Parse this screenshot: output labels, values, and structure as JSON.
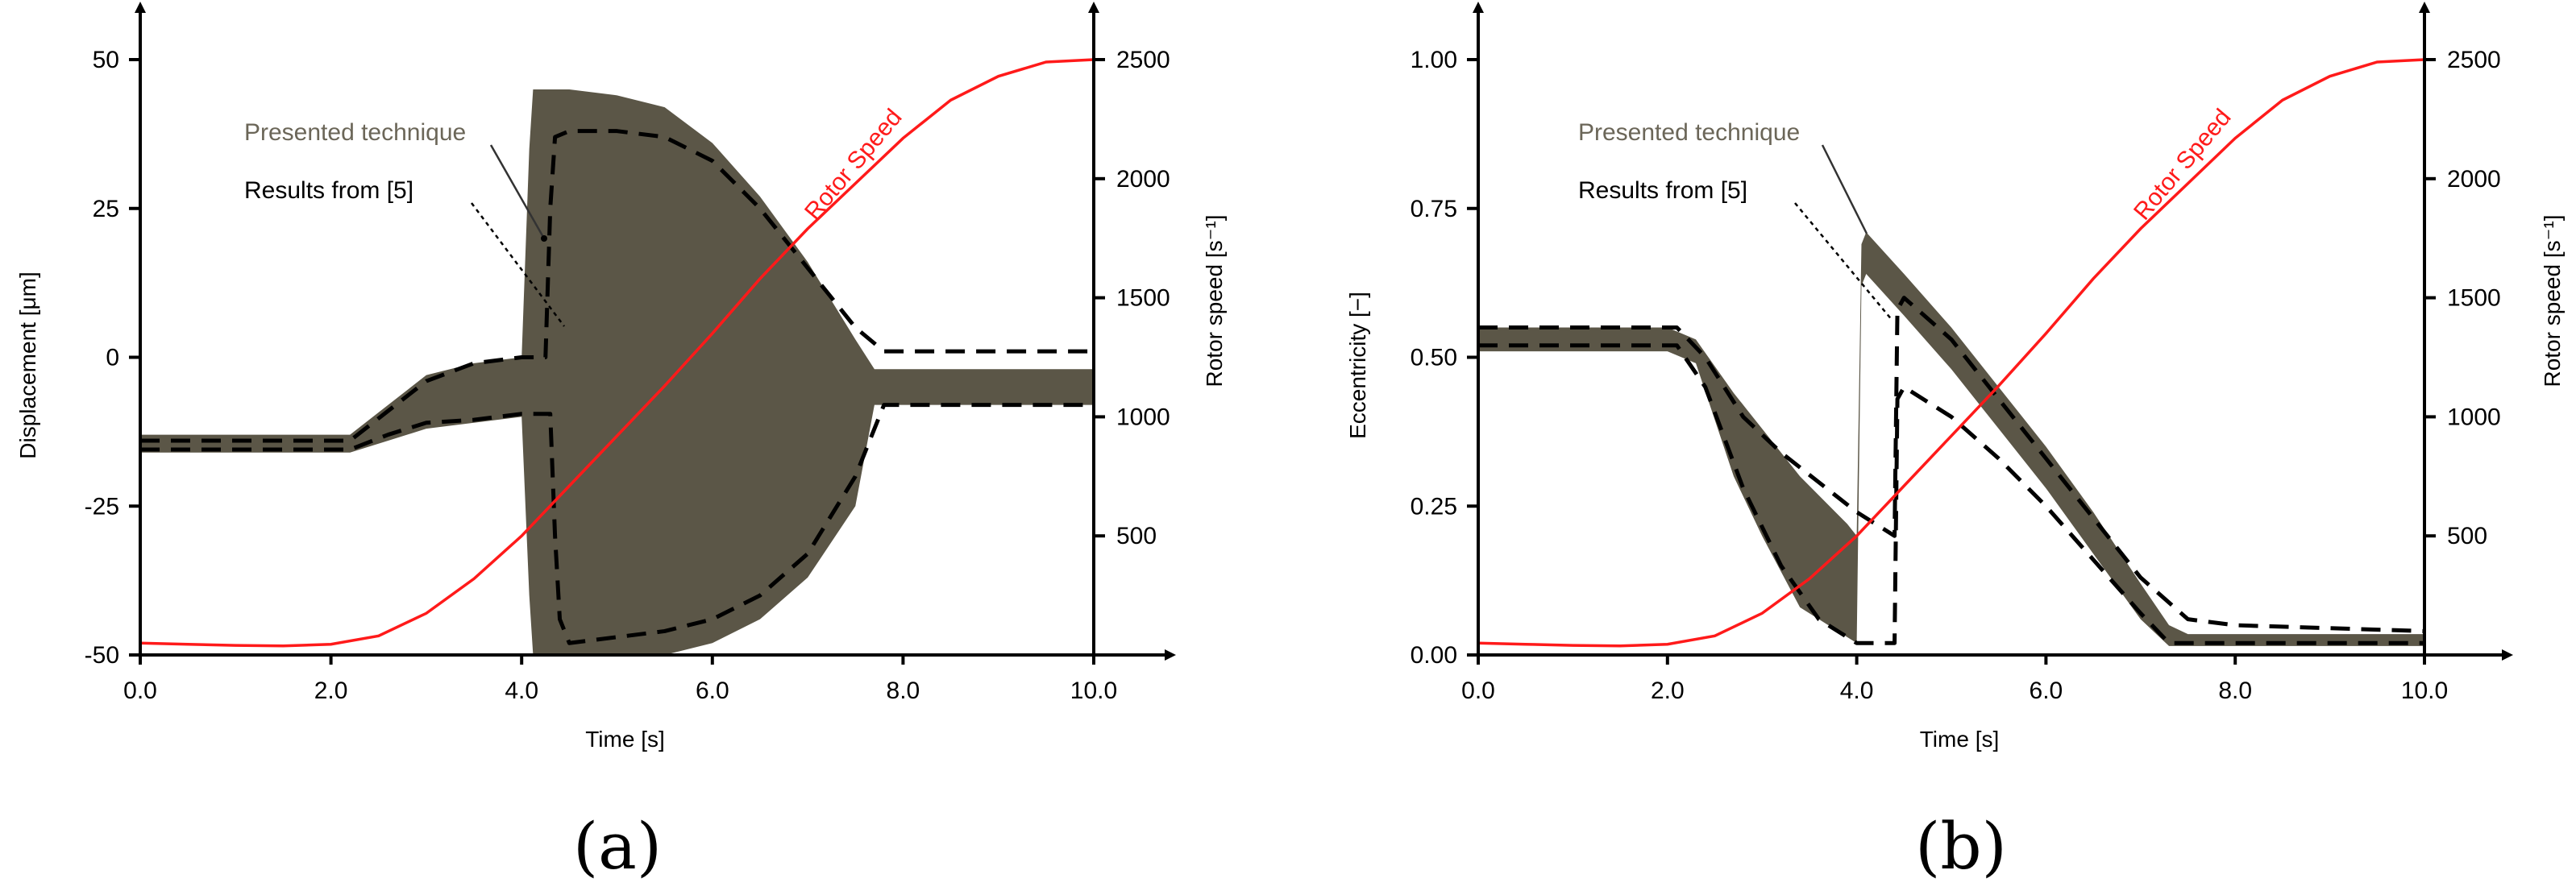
{
  "chart_data": [
    {
      "type": "line",
      "panel_label": "(a)",
      "xlabel": "Time [s]",
      "ylabel": "Displacement [μm]",
      "y2label": "Rotor speed [s⁻¹]",
      "xlim": [
        0,
        10
      ],
      "ylim": [
        -50,
        60
      ],
      "y2lim": [
        0,
        2500
      ],
      "xticks": [
        "0.0",
        "2.0",
        "4.0",
        "6.0",
        "8.0",
        "10.0"
      ],
      "xtick_values": [
        0,
        2,
        4,
        6,
        8,
        10
      ],
      "yticks": [
        "50",
        "25",
        "0",
        "-25",
        "-50"
      ],
      "ytick_values": [
        50,
        25,
        0,
        -25,
        -50
      ],
      "y2ticks": [
        "2500",
        "2000",
        "1500",
        "1000",
        "500"
      ],
      "y2tick_values": [
        2500,
        2000,
        1500,
        1000,
        500
      ],
      "annotations": {
        "presented": "Presented technique",
        "results": "Results from [5]",
        "rotor": "Rotor Speed"
      },
      "series": [
        {
          "kind": "band",
          "label_ref": "presented",
          "color": "#5b5647",
          "x": [
            0,
            2.2,
            2.6,
            3.0,
            3.5,
            4.0,
            4.08,
            4.12,
            4.5,
            5.0,
            5.5,
            6.0,
            6.5,
            7.0,
            7.5,
            7.7,
            8.0,
            9.0,
            10.0
          ],
          "upper": [
            -13,
            -13,
            -8,
            -3,
            -1,
            0,
            35,
            45,
            45,
            44,
            42,
            36,
            27,
            16,
            3,
            -2,
            -2,
            -2,
            -2
          ],
          "lower": [
            -16,
            -16,
            -14,
            -12,
            -11,
            -10,
            -40,
            -50,
            -50,
            -50,
            -50,
            -48,
            -44,
            -37,
            -25,
            -8,
            -8,
            -8,
            -8
          ]
        },
        {
          "kind": "dashed-envelope",
          "label_ref": "results",
          "color": "#000000",
          "segments": [
            {
              "x": [
                0,
                2.2,
                2.6,
                3.0,
                3.5,
                4.0,
                4.25,
                4.3,
                4.35,
                4.5,
                5.0,
                5.5,
                6.0,
                6.5,
                7.0,
                7.5,
                7.8,
                8.5,
                10.0
              ],
              "y": [
                -14,
                -14,
                -9,
                -4,
                -1,
                0,
                0,
                25,
                37,
                38,
                38,
                37,
                33,
                25,
                15,
                5,
                1,
                1,
                1
              ]
            },
            {
              "x": [
                0,
                2.2,
                2.6,
                3.0,
                3.5,
                4.0,
                4.3,
                4.35,
                4.4,
                4.5,
                5.0,
                5.5,
                6.0,
                6.5,
                7.0,
                7.5,
                7.8,
                8.5,
                10.0
              ],
              "y": [
                -15.5,
                -15.5,
                -13,
                -11,
                -10.5,
                -9.5,
                -9.5,
                -30,
                -44,
                -48,
                -47,
                -46,
                -44,
                -40,
                -33,
                -20,
                -8,
                -8,
                -8
              ]
            }
          ]
        },
        {
          "kind": "line",
          "label_ref": "rotor",
          "axis": "y2",
          "color": "#ff1a1a",
          "x": [
            0,
            0.5,
            1.0,
            1.5,
            2.0,
            2.5,
            3.0,
            3.5,
            4.0,
            4.5,
            5.0,
            5.5,
            6.0,
            6.5,
            7.0,
            7.5,
            8.0,
            8.5,
            9.0,
            9.5,
            10.0
          ],
          "y": [
            50,
            45,
            40,
            38,
            45,
            80,
            175,
            320,
            500,
            710,
            920,
            1130,
            1350,
            1580,
            1790,
            1980,
            2170,
            2330,
            2430,
            2490,
            2500
          ]
        }
      ]
    },
    {
      "type": "line",
      "panel_label": "(b)",
      "xlabel": "Time [s]",
      "ylabel": "Eccentricity [−]",
      "y2label": "Rotor speed [s⁻¹]",
      "xlim": [
        0,
        10.5
      ],
      "ylim": [
        0,
        1.1
      ],
      "y2lim": [
        0,
        2500
      ],
      "xticks": [
        "0.0",
        "2.0",
        "4.0",
        "6.0",
        "8.0",
        "10.0"
      ],
      "xtick_values": [
        0,
        2,
        4,
        6,
        8,
        10
      ],
      "yticks": [
        "1.00",
        "0.75",
        "0.50",
        "0.25",
        "0.00"
      ],
      "ytick_values": [
        1.0,
        0.75,
        0.5,
        0.25,
        0.0
      ],
      "y2ticks": [
        "2500",
        "2000",
        "1500",
        "1000",
        "500"
      ],
      "y2tick_values": [
        2500,
        2000,
        1500,
        1000,
        500
      ],
      "annotations": {
        "presented": "Presented technique",
        "results": "Results from [5]",
        "rotor": "Rotor Speed"
      },
      "series": [
        {
          "kind": "band",
          "label_ref": "presented",
          "color": "#5b5647",
          "x": [
            0,
            2.0,
            2.3,
            2.7,
            3.0,
            3.4,
            3.9,
            4.0,
            4.05,
            4.1,
            4.5,
            5.0,
            5.5,
            6.0,
            6.5,
            7.0,
            7.3,
            7.5,
            8.0,
            10.0
          ],
          "upper": [
            0.55,
            0.55,
            0.53,
            0.44,
            0.38,
            0.3,
            0.22,
            0.2,
            0.69,
            0.71,
            0.64,
            0.55,
            0.45,
            0.35,
            0.24,
            0.12,
            0.05,
            0.035,
            0.035,
            0.035
          ],
          "lower": [
            0.51,
            0.51,
            0.49,
            0.3,
            0.2,
            0.08,
            0.03,
            0.02,
            0.62,
            0.64,
            0.57,
            0.48,
            0.38,
            0.28,
            0.17,
            0.06,
            0.015,
            0.015,
            0.015,
            0.015
          ]
        },
        {
          "kind": "dashed-envelope",
          "label_ref": "results",
          "color": "#000000",
          "segments": [
            {
              "x": [
                0,
                2.1,
                2.4,
                2.8,
                3.2,
                3.6,
                4.0,
                4.4,
                4.43,
                4.5,
                5.0,
                5.5,
                6.0,
                6.5,
                7.0,
                7.5,
                8.0,
                10.0
              ],
              "y": [
                0.55,
                0.55,
                0.5,
                0.4,
                0.34,
                0.29,
                0.24,
                0.2,
                0.58,
                0.6,
                0.53,
                0.43,
                0.33,
                0.23,
                0.13,
                0.06,
                0.05,
                0.04
              ]
            },
            {
              "x": [
                0,
                2.1,
                2.4,
                2.8,
                3.2,
                3.6,
                4.0,
                4.4,
                4.43,
                4.5,
                5.0,
                5.5,
                6.0,
                6.5,
                7.0,
                7.3,
                8.0,
                10.0
              ],
              "y": [
                0.52,
                0.52,
                0.45,
                0.28,
                0.15,
                0.06,
                0.02,
                0.02,
                0.43,
                0.45,
                0.4,
                0.33,
                0.25,
                0.16,
                0.07,
                0.02,
                0.02,
                0.02
              ]
            }
          ]
        },
        {
          "kind": "line",
          "label_ref": "rotor",
          "axis": "y2",
          "color": "#ff1a1a",
          "x": [
            0,
            0.5,
            1.0,
            1.5,
            2.0,
            2.5,
            3.0,
            3.5,
            4.0,
            4.5,
            5.0,
            5.5,
            6.0,
            6.5,
            7.0,
            7.5,
            8.0,
            8.5,
            9.0,
            9.5,
            10.0
          ],
          "y": [
            50,
            45,
            40,
            38,
            45,
            80,
            175,
            320,
            500,
            710,
            920,
            1130,
            1350,
            1580,
            1790,
            1980,
            2170,
            2330,
            2430,
            2490,
            2500
          ]
        }
      ]
    }
  ]
}
